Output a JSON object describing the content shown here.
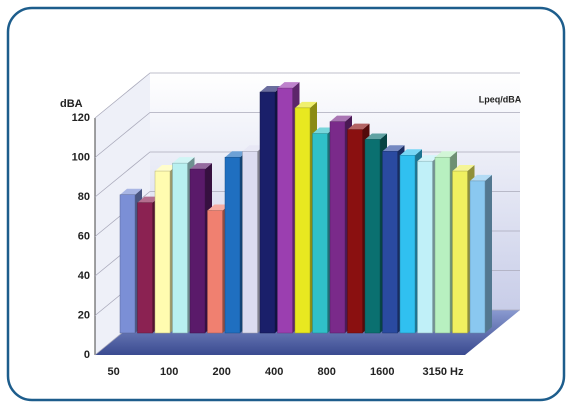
{
  "chart_data": {
    "type": "bar3d",
    "y_label": "dBA",
    "legend": "Lpeq/dBA",
    "categories": [
      "50",
      null,
      null,
      "100",
      null,
      null,
      "200",
      null,
      null,
      "400",
      null,
      null,
      "800",
      null,
      null,
      "1600",
      null,
      null,
      "3150 Hz",
      null,
      null
    ],
    "series": [
      {
        "name": "Lpeq/dBA",
        "colors": [
          "#7b8fd6",
          "#8b2252",
          "#fffcb0",
          "#b8f0f0",
          "#5a1a6a",
          "#f08070",
          "#1f6fc0",
          "#dcdcf0",
          "#1a1f6a",
          "#9b3fb0",
          "#e8e820",
          "#30c0c8",
          "#7a2a8a",
          "#8a1010",
          "#0a7070",
          "#2a4aa0",
          "#30c0f0",
          "#c0f0f8",
          "#b8f0c0",
          "#f0f060",
          "#8ac8f0"
        ],
        "values": [
          70,
          66,
          82,
          86,
          83,
          62,
          89,
          92,
          122,
          124,
          114,
          101,
          107,
          103,
          98,
          92,
          90,
          87,
          89,
          82,
          77
        ]
      }
    ],
    "ylim": [
      0,
      120
    ],
    "yticks": [
      0,
      20,
      40,
      60,
      80,
      100,
      120
    ],
    "grid": true
  }
}
